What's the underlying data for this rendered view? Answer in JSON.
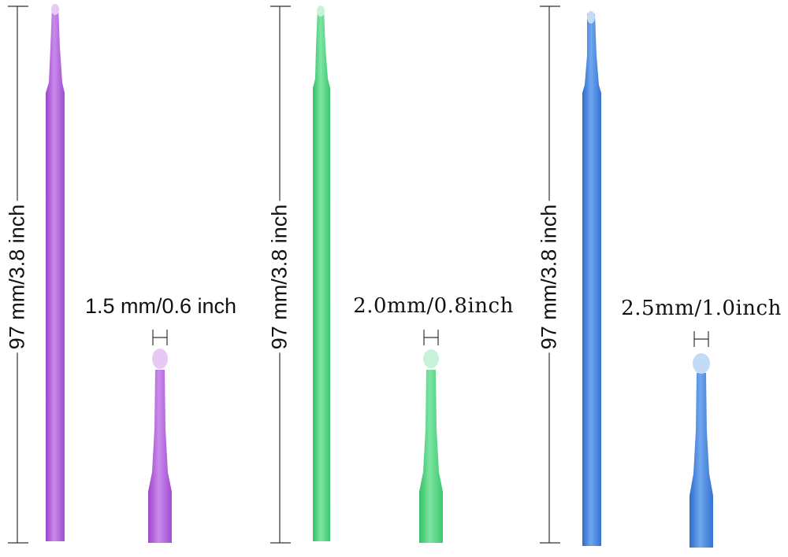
{
  "colors": {
    "purple": "#B85FE0",
    "purple_tip": "#E6C9F5",
    "green": "#4CD77F",
    "green_tip": "#C9F3D8",
    "blue": "#3D7FE0",
    "blue_tip": "#C4DBF7",
    "line": "#333333"
  },
  "applicators": [
    {
      "name": "purple",
      "length_label": "97 mm/3.8 inch",
      "tip_label": "1.5 mm/0.6 inch"
    },
    {
      "name": "green",
      "length_label": "97 mm/3.8 inch",
      "tip_label": "2.0mm/0.8inch"
    },
    {
      "name": "blue",
      "length_label": "97 mm/3.8 inch",
      "tip_label": "2.5mm/1.0inch"
    }
  ]
}
